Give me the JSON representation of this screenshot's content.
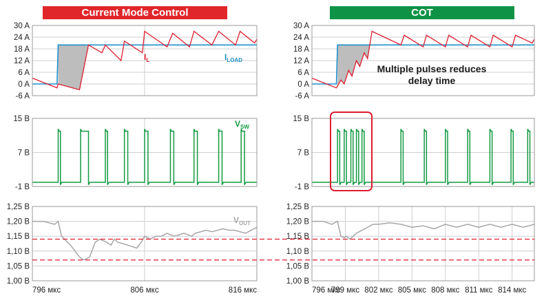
{
  "titles": {
    "left": "Current Mode Control",
    "right": "COT"
  },
  "colors": {
    "banner_left": "#e0262b",
    "banner_right": "#0e9346",
    "il": "#dd1d2e",
    "iload": "#1e8fcb",
    "vsw": "#139a42",
    "vout": "#a6a6a6",
    "limit": "#dd1d2e",
    "fill": "#bdbdbd",
    "grid": "#cfcfcf",
    "border": "#9a9a9a"
  },
  "labels": {
    "il_main": "I",
    "il_sub": "L",
    "iload_main": "I",
    "iload_sub": "LOAD",
    "vsw_main": "V",
    "vsw_sub": "SW",
    "vout_main": "V",
    "vout_sub": "OUT",
    "annotation_line1": "Multiple pulses reduces",
    "annotation_line2": "delay time"
  },
  "chart_data": [
    {
      "type": "line",
      "panel": "current",
      "side": "left",
      "ylim": [
        -6,
        30
      ],
      "yticks": [
        "30 A",
        "24 A",
        "18 A",
        "12 A",
        "6 A",
        "0 A",
        "-6 A"
      ],
      "xlim": [
        796,
        816
      ],
      "series": [
        {
          "name": "IL",
          "x": [
            796,
            798.2,
            798.3,
            800.2,
            801.0,
            802.2,
            802.5,
            803.9,
            804.2,
            805.8,
            806.0,
            808.0,
            808.5,
            810.0,
            810.4,
            812.0,
            812.6,
            814.1,
            814.5,
            815.8,
            816
          ],
          "y": [
            3,
            -2,
            0,
            -3,
            20,
            16,
            20,
            12,
            22,
            16,
            27,
            19,
            26,
            19,
            27,
            20,
            27,
            20,
            27,
            21,
            23
          ]
        },
        {
          "name": "ILOAD",
          "x": [
            796,
            798.2,
            798.3,
            816
          ],
          "y": [
            0,
            0,
            20,
            20
          ]
        }
      ]
    },
    {
      "type": "line",
      "panel": "current",
      "side": "right",
      "ylim": [
        -6,
        30
      ],
      "yticks": [
        "30 A",
        "24 A",
        "18 A",
        "12 A",
        "6 A",
        "0 A",
        "-6 A"
      ],
      "xlim": [
        796,
        816
      ],
      "series": [
        {
          "name": "IL",
          "x": [
            796,
            798.2,
            798.6,
            798.9,
            799.3,
            799.6,
            800.0,
            800.3,
            800.7,
            801.0,
            801.4,
            804.0,
            804.3,
            806.0,
            806.3,
            808.0,
            808.3,
            810.0,
            810.3,
            812.0,
            812.3,
            814.0,
            814.3,
            815.8,
            816
          ],
          "y": [
            3,
            -2,
            2,
            0,
            7,
            4,
            12,
            9,
            16,
            13,
            27,
            20,
            25,
            19,
            25,
            19,
            25,
            19,
            25,
            19,
            25,
            19,
            25,
            21,
            23
          ]
        },
        {
          "name": "ILOAD",
          "x": [
            796,
            798.2,
            798.3,
            816
          ],
          "y": [
            0,
            0,
            20,
            20
          ]
        }
      ]
    },
    {
      "type": "line",
      "panel": "switch",
      "side": "left",
      "ylim": [
        -1,
        15
      ],
      "yticks": [
        "15 B",
        "7 B",
        "-1 B"
      ],
      "xlim": [
        796,
        816
      ],
      "pulses": [
        [
          798.3,
          798.5
        ],
        [
          800.3,
          801.0
        ],
        [
          802.5,
          802.7
        ],
        [
          804.2,
          804.5
        ],
        [
          806.0,
          806.3
        ],
        [
          808.3,
          808.6
        ],
        [
          810.4,
          810.7
        ],
        [
          812.6,
          812.9
        ],
        [
          814.6,
          814.9
        ]
      ],
      "series": [
        {
          "name": "VSW",
          "high": 12,
          "low": 0
        }
      ]
    },
    {
      "type": "line",
      "panel": "switch",
      "side": "right",
      "ylim": [
        -1,
        15
      ],
      "yticks": [
        "15 B",
        "7 B",
        "-1 B"
      ],
      "xlim": [
        796,
        816
      ],
      "pulses": [
        [
          798.3,
          798.5
        ],
        [
          798.9,
          799.1
        ],
        [
          799.5,
          799.7
        ],
        [
          800.0,
          800.2
        ],
        [
          800.5,
          800.7
        ],
        [
          804.0,
          804.2
        ],
        [
          806.1,
          806.3
        ],
        [
          808.0,
          808.2
        ],
        [
          810.0,
          810.2
        ],
        [
          812.0,
          812.2
        ],
        [
          813.9,
          814.1
        ],
        [
          815.4,
          815.6
        ]
      ],
      "series": [
        {
          "name": "VSW",
          "high": 12,
          "low": 0
        }
      ]
    },
    {
      "type": "line",
      "panel": "output",
      "side": "left",
      "ylim": [
        1.0,
        1.25
      ],
      "yticks": [
        "1,25 B",
        "1,20 B",
        "1,15 B",
        "1,10 B",
        "1,05 B",
        "1,00 B"
      ],
      "xlim": [
        796,
        816
      ],
      "xticks": [
        "796 мкс",
        "806 мкс",
        "816 мкс"
      ],
      "xtick_vals": [
        796,
        806,
        816
      ],
      "limits": [
        1.14,
        1.07
      ],
      "series": [
        {
          "name": "VOUT",
          "x": [
            796,
            797,
            798.0,
            798.3,
            798.6,
            799.4,
            800.2,
            800.6,
            801.1,
            801.6,
            802.0,
            802.6,
            803.0,
            803.3,
            803.6,
            804.5,
            805.3,
            805.7,
            806.0,
            806.5,
            807.0,
            807.5,
            808.0,
            808.3,
            808.7,
            809.5,
            810.2,
            810.5,
            811.0,
            811.5,
            812.0,
            812.5,
            813.0,
            813.5,
            814.0,
            814.5,
            815.0,
            815.5,
            816
          ],
          "y": [
            1.2,
            1.2,
            1.19,
            1.2,
            1.15,
            1.12,
            1.08,
            1.07,
            1.08,
            1.13,
            1.14,
            1.13,
            1.12,
            1.14,
            1.13,
            1.12,
            1.11,
            1.13,
            1.15,
            1.14,
            1.15,
            1.15,
            1.16,
            1.155,
            1.15,
            1.16,
            1.15,
            1.16,
            1.165,
            1.17,
            1.165,
            1.17,
            1.175,
            1.17,
            1.17,
            1.165,
            1.16,
            1.17,
            1.18
          ]
        }
      ]
    },
    {
      "type": "line",
      "panel": "output",
      "side": "right",
      "ylim": [
        1.0,
        1.25
      ],
      "yticks": [
        "1,25 B",
        "1,20 B",
        "1,15 B",
        "1,10 B",
        "1,05 B",
        "1,00 B"
      ],
      "xlim": [
        796,
        816
      ],
      "xticks": [
        "796 мкс",
        "799 мкс",
        "802 мкс",
        "805 мкс",
        "808 мкс",
        "811 мкс",
        "814 мкс"
      ],
      "xtick_vals": [
        796,
        799,
        802,
        805,
        808,
        811,
        814
      ],
      "limits": [
        1.14,
        1.07
      ],
      "series": [
        {
          "name": "VOUT",
          "x": [
            796,
            797,
            797.8,
            798.3,
            798.6,
            798.9,
            799.1,
            799.4,
            799.7,
            800.0,
            800.5,
            801.0,
            801.5,
            802.0,
            803.0,
            804.0,
            805.0,
            806.0,
            807.0,
            808.0,
            809.0,
            810.0,
            811.0,
            812.0,
            813.0,
            814.0,
            815.0,
            816
          ],
          "y": [
            1.2,
            1.2,
            1.19,
            1.2,
            1.15,
            1.145,
            1.15,
            1.14,
            1.15,
            1.16,
            1.17,
            1.18,
            1.19,
            1.19,
            1.195,
            1.19,
            1.18,
            1.185,
            1.175,
            1.19,
            1.18,
            1.19,
            1.18,
            1.19,
            1.18,
            1.19,
            1.18,
            1.19
          ]
        }
      ]
    }
  ]
}
